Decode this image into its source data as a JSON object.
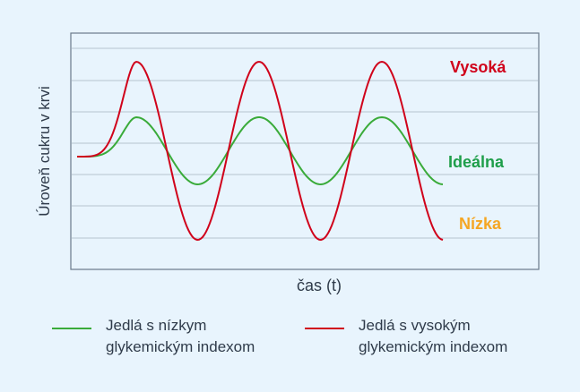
{
  "chart_data": {
    "type": "line",
    "xlabel": "čas (t)",
    "ylabel": "Úroveň cukru v krvi",
    "grid": true,
    "annotations": [
      {
        "text": "Vysoká",
        "color": "#d0021b"
      },
      {
        "text": "Ideálna",
        "color": "#1e9e4a"
      },
      {
        "text": "Nízka",
        "color": "#f5a623"
      }
    ],
    "series": [
      {
        "name": "Jedlá s nízkym glykemickým indexom",
        "color": "#3aab3a"
      },
      {
        "name": "Jedlá s vysokým glykemickým indexom",
        "color": "#d0021b"
      }
    ]
  },
  "legend": {
    "low_gi": "Jedlá s nízkym\nglykemickým indexom",
    "high_gi": "Jedlá s vysokým\nglykemickým indexom"
  }
}
